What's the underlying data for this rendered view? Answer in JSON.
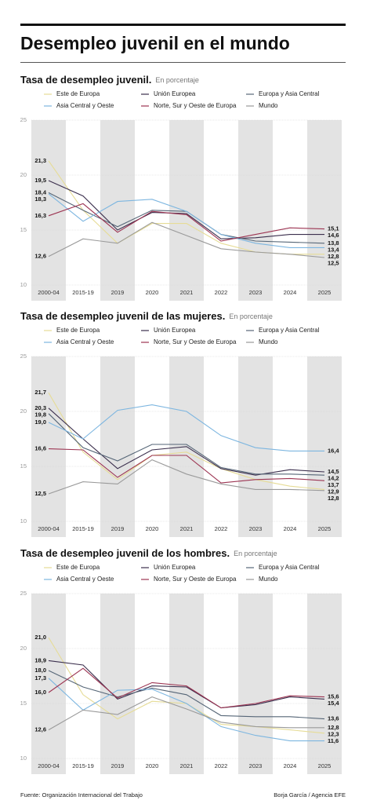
{
  "title": "Desempleo juvenil en el mundo",
  "source": "Fuente: Organización Internacional del Trabajo",
  "credit": "Borja García / Agencia EFE",
  "chart_data": [
    {
      "type": "line",
      "title": "Tasa de desempleo juvenil.",
      "subtitle": "En porcentaje",
      "categories": [
        "2000-04",
        "2015-19",
        "2019",
        "2020",
        "2021",
        "2022",
        "2023",
        "2024",
        "2025"
      ],
      "ylim": [
        10,
        25
      ],
      "yticks": [
        10,
        15,
        20,
        25
      ],
      "series": [
        {
          "name": "Este de Europa",
          "color": "#e6dc96",
          "values": [
            21.3,
            16.8,
            13.8,
            15.6,
            15.6,
            13.8,
            13.0,
            12.8,
            12.8
          ],
          "value_labels": [
            "21,3",
            null,
            null,
            null,
            null,
            null,
            null,
            null,
            "12,8"
          ]
        },
        {
          "name": "Unión Europea",
          "color": "#3b2f4d",
          "values": [
            19.5,
            18.1,
            15.0,
            16.6,
            16.5,
            14.2,
            14.3,
            14.6,
            14.6
          ],
          "value_labels": [
            "19,5",
            null,
            null,
            null,
            null,
            null,
            null,
            null,
            "14,6"
          ]
        },
        {
          "name": "Europa y Asia Central",
          "color": "#566677",
          "values": [
            18.4,
            16.8,
            15.3,
            16.8,
            16.7,
            14.6,
            14.0,
            13.9,
            13.8
          ],
          "value_labels": [
            "18,4",
            null,
            null,
            null,
            null,
            null,
            null,
            null,
            "13,8"
          ]
        },
        {
          "name": "Asia Central y Oeste",
          "color": "#7db6e0",
          "values": [
            18.3,
            15.8,
            17.6,
            17.8,
            16.7,
            14.6,
            13.8,
            13.4,
            13.4
          ],
          "value_labels": [
            "18,3",
            null,
            null,
            null,
            null,
            null,
            null,
            null,
            "13,4"
          ]
        },
        {
          "name": "Norte, Sur y Oeste de Europa",
          "color": "#9c3452",
          "values": [
            16.3,
            17.4,
            14.8,
            16.7,
            16.4,
            14.0,
            14.6,
            15.2,
            15.1
          ],
          "value_labels": [
            "16,3",
            null,
            null,
            null,
            null,
            null,
            null,
            null,
            "15,1"
          ]
        },
        {
          "name": "Mundo",
          "color": "#9a9a9a",
          "values": [
            12.6,
            14.2,
            13.8,
            15.7,
            14.5,
            13.3,
            13.0,
            12.8,
            12.5
          ],
          "value_labels": [
            "12,6",
            null,
            null,
            null,
            null,
            null,
            null,
            null,
            "12,5"
          ]
        }
      ]
    },
    {
      "type": "line",
      "title": "Tasa de desempleo juvenil de las mujeres.",
      "subtitle": "En porcentaje",
      "categories": [
        "2000-04",
        "2015-19",
        "2019",
        "2020",
        "2021",
        "2022",
        "2023",
        "2024",
        "2025"
      ],
      "ylim": [
        10,
        25
      ],
      "yticks": [
        10,
        15,
        20,
        25
      ],
      "series": [
        {
          "name": "Este de Europa",
          "color": "#e6dc96",
          "values": [
            21.7,
            16.3,
            13.8,
            16.0,
            16.3,
            14.8,
            13.8,
            13.2,
            12.9
          ],
          "value_labels": [
            "21,7",
            null,
            null,
            null,
            null,
            null,
            null,
            null,
            "12,9"
          ]
        },
        {
          "name": "Unión Europea",
          "color": "#3b2f4d",
          "values": [
            20.3,
            17.5,
            14.8,
            16.5,
            16.8,
            14.8,
            14.2,
            14.7,
            14.5
          ],
          "value_labels": [
            "20,3",
            null,
            null,
            null,
            null,
            null,
            null,
            null,
            "14,5"
          ]
        },
        {
          "name": "Europa y Asia Central",
          "color": "#566677",
          "values": [
            19.8,
            16.7,
            15.5,
            17.0,
            17.0,
            14.9,
            14.3,
            14.3,
            14.2
          ],
          "value_labels": [
            "19,8",
            null,
            null,
            null,
            null,
            null,
            null,
            null,
            "14,2"
          ]
        },
        {
          "name": "Asia Central y Oeste",
          "color": "#7db6e0",
          "values": [
            19.0,
            17.5,
            20.1,
            20.6,
            20.0,
            17.8,
            16.7,
            16.4,
            16.4
          ],
          "value_labels": [
            "19,0",
            null,
            null,
            null,
            null,
            null,
            null,
            null,
            "16,4"
          ]
        },
        {
          "name": "Norte, Sur y Oeste de Europa",
          "color": "#9c3452",
          "values": [
            16.6,
            16.5,
            14.0,
            16.0,
            16.0,
            13.5,
            13.8,
            13.9,
            13.7
          ],
          "value_labels": [
            "16,6",
            null,
            null,
            null,
            null,
            null,
            null,
            null,
            "13,7"
          ]
        },
        {
          "name": "Mundo",
          "color": "#9a9a9a",
          "values": [
            12.5,
            13.6,
            13.4,
            15.6,
            14.3,
            13.4,
            12.9,
            12.9,
            12.8
          ],
          "value_labels": [
            "12,5",
            null,
            null,
            null,
            null,
            null,
            null,
            null,
            "12,8"
          ]
        }
      ]
    },
    {
      "type": "line",
      "title": "Tasa de desempleo juvenil de los hombres.",
      "subtitle": "En porcentaje",
      "categories": [
        "2000-04",
        "2015-19",
        "2019",
        "2020",
        "2021",
        "2022",
        "2023",
        "2024",
        "2025"
      ],
      "ylim": [
        10,
        25
      ],
      "yticks": [
        10,
        15,
        20,
        25
      ],
      "series": [
        {
          "name": "Este de Europa",
          "color": "#e6dc96",
          "values": [
            21.0,
            15.8,
            13.6,
            15.2,
            15.0,
            13.1,
            12.9,
            12.6,
            12.3
          ],
          "value_labels": [
            "21,0",
            null,
            null,
            null,
            null,
            null,
            null,
            null,
            "12,3"
          ]
        },
        {
          "name": "Unión Europea",
          "color": "#3b2f4d",
          "values": [
            18.9,
            18.5,
            15.4,
            16.6,
            16.5,
            14.6,
            14.9,
            15.6,
            15.4
          ],
          "value_labels": [
            "18,9",
            null,
            null,
            null,
            null,
            null,
            null,
            null,
            "15,4"
          ]
        },
        {
          "name": "Europa y Asia Central",
          "color": "#566677",
          "values": [
            18.0,
            16.5,
            15.6,
            16.4,
            15.8,
            13.9,
            13.8,
            13.8,
            13.6
          ],
          "value_labels": [
            "18,0",
            null,
            null,
            null,
            null,
            null,
            null,
            null,
            "13,6"
          ]
        },
        {
          "name": "Asia Central y Oeste",
          "color": "#7db6e0",
          "values": [
            17.3,
            14.4,
            16.2,
            16.3,
            15.0,
            12.9,
            12.1,
            11.6,
            11.6
          ],
          "value_labels": [
            "17,3",
            null,
            null,
            null,
            null,
            null,
            null,
            null,
            "11,6"
          ]
        },
        {
          "name": "Norte, Sur y Oeste de Europa",
          "color": "#9c3452",
          "values": [
            16.0,
            18.2,
            15.5,
            16.9,
            16.6,
            14.6,
            15.0,
            15.7,
            15.6
          ],
          "value_labels": [
            "16,0",
            null,
            null,
            null,
            null,
            null,
            null,
            null,
            "15,6"
          ]
        },
        {
          "name": "Mundo",
          "color": "#9a9a9a",
          "values": [
            12.6,
            14.4,
            14.0,
            15.6,
            14.5,
            13.3,
            12.9,
            12.8,
            12.8
          ],
          "value_labels": [
            "12,6",
            null,
            null,
            null,
            null,
            null,
            null,
            null,
            "12,8"
          ]
        }
      ]
    }
  ]
}
